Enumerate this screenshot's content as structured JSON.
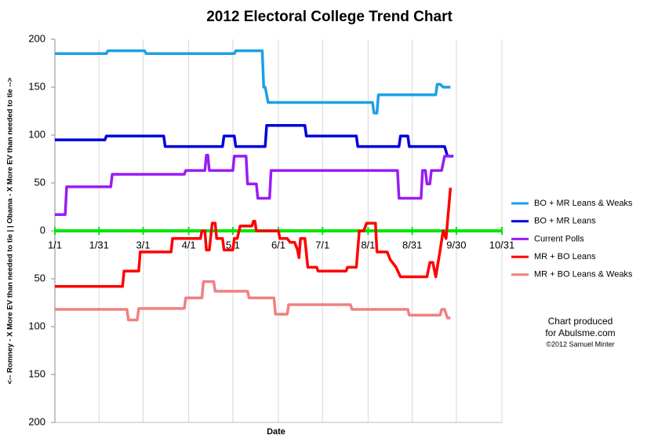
{
  "chart_data": {
    "type": "line",
    "title": "2012 Electoral College Trend Chart",
    "xlabel": "Date",
    "ylabel": "<-- Romney - X More EV than needed to tie | | Obama - X More EV than needed to tie -->",
    "annotation": [
      "Chart produced",
      "for Abulsme.com",
      "©2012 Samuel Minter"
    ],
    "xlim": [
      0,
      304
    ],
    "xticks": [
      {
        "value": 0,
        "label": "1/1"
      },
      {
        "value": 30,
        "label": "1/31"
      },
      {
        "value": 60,
        "label": "3/1"
      },
      {
        "value": 91,
        "label": "4/1"
      },
      {
        "value": 121,
        "label": "5/1"
      },
      {
        "value": 152,
        "label": "6/1"
      },
      {
        "value": 182,
        "label": "7/1"
      },
      {
        "value": 213,
        "label": "8/1"
      },
      {
        "value": 243,
        "label": "8/31"
      },
      {
        "value": 273,
        "label": "9/30"
      },
      {
        "value": 304,
        "label": "10/31"
      }
    ],
    "ylim": [
      -200,
      200
    ],
    "yticks": [
      {
        "value": -200,
        "label": "200"
      },
      {
        "value": -150,
        "label": "150"
      },
      {
        "value": -100,
        "label": "100"
      },
      {
        "value": -50,
        "label": "50"
      },
      0,
      50,
      100,
      150,
      200
    ],
    "grid": true,
    "zero_line_color": "#00e600",
    "legend": "right",
    "series": [
      {
        "name": "BO + MR Leans & Weaks",
        "color": "#1e9fe6",
        "x": [
          0,
          35,
          36,
          61,
          62,
          122,
          123,
          141,
          142,
          143,
          145,
          216,
          217,
          219,
          220,
          259,
          260,
          262,
          264,
          269
        ],
        "values": [
          185,
          185,
          188,
          188,
          185,
          185,
          188,
          188,
          150,
          150,
          134,
          134,
          123,
          123,
          142,
          142,
          153,
          153,
          150,
          150
        ]
      },
      {
        "name": "BO + MR Leans",
        "color": "#0000dd",
        "x": [
          0,
          34,
          35,
          74,
          75,
          114,
          115,
          122,
          123,
          143,
          144,
          170,
          171,
          205,
          206,
          234,
          235,
          240,
          241,
          265,
          267,
          271
        ],
        "values": [
          95,
          95,
          99,
          99,
          88,
          88,
          99,
          99,
          88,
          88,
          110,
          110,
          99,
          99,
          88,
          88,
          99,
          99,
          88,
          88,
          78,
          78
        ]
      },
      {
        "name": "Current Polls",
        "color": "#9a1cf5",
        "x": [
          0,
          7,
          8,
          38,
          39,
          88,
          89,
          102,
          103,
          104,
          105,
          121,
          122,
          130,
          131,
          137,
          138,
          146,
          147,
          233,
          234,
          249,
          250,
          252,
          253,
          255,
          256,
          263,
          265,
          271
        ],
        "values": [
          17,
          17,
          46,
          46,
          59,
          59,
          63,
          63,
          79,
          79,
          63,
          63,
          78,
          78,
          49,
          49,
          34,
          34,
          63,
          63,
          34,
          34,
          63,
          63,
          49,
          49,
          63,
          63,
          78,
          78
        ]
      },
      {
        "name": "MR + BO Leans",
        "color": "#ff0000",
        "x": [
          0,
          46,
          47,
          57,
          58,
          79,
          80,
          99,
          100,
          102,
          103,
          105,
          107,
          109,
          110,
          114,
          115,
          121,
          122,
          124,
          126,
          134,
          135,
          136,
          137,
          152,
          153,
          158,
          160,
          163,
          165,
          166,
          167,
          170,
          172,
          178,
          179,
          198,
          199,
          205,
          207,
          210,
          212,
          218,
          219,
          226,
          228,
          232,
          235,
          253,
          255,
          257,
          259,
          262,
          264,
          266,
          269
        ],
        "values": [
          -58,
          -58,
          -42,
          -42,
          -22,
          -22,
          -8,
          -8,
          0,
          0,
          -20,
          -20,
          8,
          8,
          -8,
          -8,
          -20,
          -20,
          -8,
          -8,
          5,
          5,
          10,
          10,
          0,
          0,
          -8,
          -8,
          -12,
          -12,
          -20,
          -28,
          -8,
          -8,
          -38,
          -38,
          -42,
          -42,
          -38,
          -38,
          0,
          0,
          8,
          8,
          -22,
          -22,
          -30,
          -38,
          -48,
          -48,
          -33,
          -33,
          -48,
          -20,
          0,
          -8,
          45
        ]
      },
      {
        "name": "MR + BO Leans & Weaks",
        "color": "#f08080",
        "x": [
          0,
          49,
          50,
          56,
          57,
          88,
          89,
          100,
          101,
          108,
          109,
          131,
          132,
          149,
          150,
          158,
          159,
          201,
          202,
          240,
          241,
          262,
          263,
          265,
          267,
          269
        ],
        "values": [
          -82,
          -82,
          -93,
          -93,
          -81,
          -81,
          -70,
          -70,
          -53,
          -53,
          -63,
          -63,
          -70,
          -70,
          -87,
          -87,
          -77,
          -77,
          -82,
          -82,
          -88,
          -88,
          -82,
          -82,
          -91,
          -91
        ]
      }
    ]
  }
}
